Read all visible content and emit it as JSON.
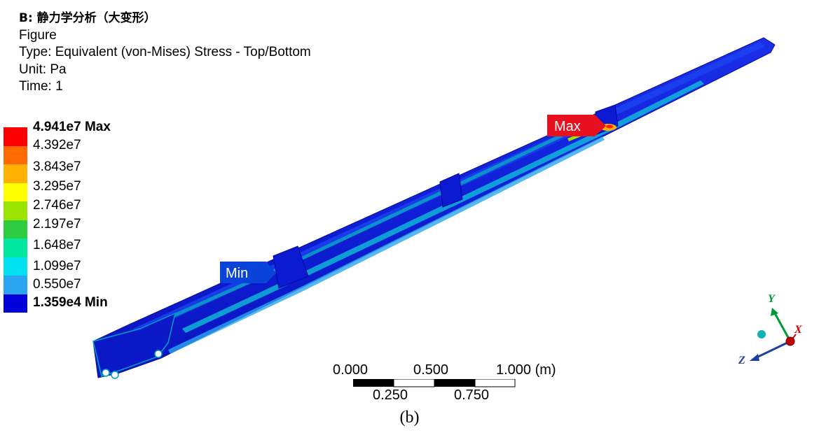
{
  "header": {
    "title": "B: 静力学分析（大变形）",
    "line1": "Figure",
    "line2": "Type: Equivalent (von-Mises) Stress - Top/Bottom",
    "line3": "Unit: Pa",
    "line4": "Time: 1"
  },
  "legend": [
    {
      "label": "4.941e7 Max",
      "color": "#ff0000",
      "bold": true
    },
    {
      "label": "4.392e7",
      "color": "#ff6a00",
      "bold": false
    },
    {
      "label": "3.843e7",
      "color": "#ffb000",
      "bold": false
    },
    {
      "label": "3.295e7",
      "color": "#ffff00",
      "bold": false
    },
    {
      "label": "2.746e7",
      "color": "#9be300",
      "bold": false
    },
    {
      "label": "2.197e7",
      "color": "#2ecc40",
      "bold": false
    },
    {
      "label": "1.648e7",
      "color": "#00e8a0",
      "bold": false
    },
    {
      "label": "1.099e7",
      "color": "#00e0f0",
      "bold": false
    },
    {
      "label": "0.550e7",
      "color": "#2aa6f0",
      "bold": false
    },
    {
      "label": "1.359e4 Min",
      "color": "#0000d8",
      "bold": true
    }
  ],
  "tags": {
    "max": "Max",
    "min": "Min",
    "max_color": "#e8101e",
    "min_color": "#0a43d9"
  },
  "scale": {
    "top_labels": [
      "0.000",
      "0.500",
      "1.000 (m)"
    ],
    "bottom_labels": [
      "0.250",
      "0.750"
    ]
  },
  "triad": {
    "x": "X",
    "y": "Y",
    "z": "Z",
    "x_color": "#d00000",
    "y_color": "#009933",
    "z_color": "#1f3fa0"
  },
  "caption": "(b)"
}
